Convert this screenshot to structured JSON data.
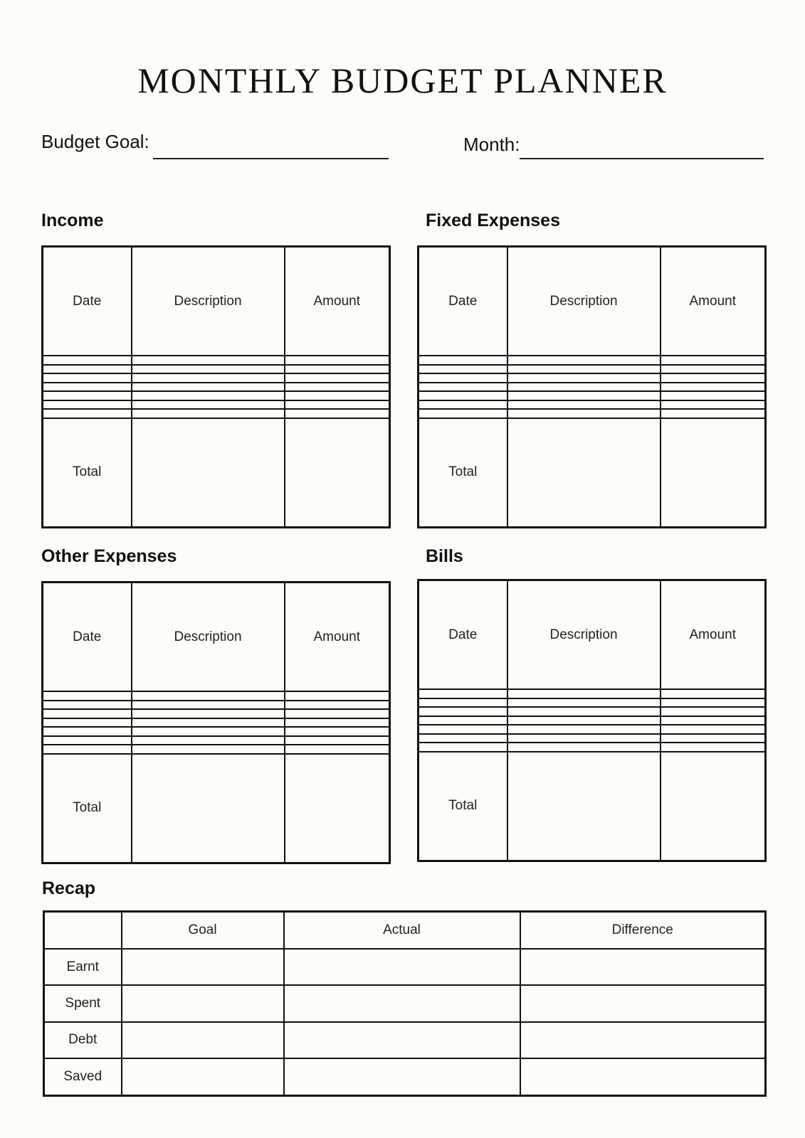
{
  "title": "MONTHLY BUDGET PLANNER",
  "budget_goal_label": "Budget Goal:",
  "month_label": "Month:",
  "sections": {
    "income": {
      "heading": "Income",
      "columns": [
        "Date",
        "Description",
        "Amount"
      ],
      "total_label": "Total"
    },
    "fixed": {
      "heading": "Fixed Expenses",
      "columns": [
        "Date",
        "Description",
        "Amount"
      ],
      "total_label": "Total"
    },
    "other": {
      "heading": "Other Expenses",
      "columns": [
        "Date",
        "Description",
        "Amount"
      ],
      "total_label": "Total"
    },
    "bills": {
      "heading": "Bills",
      "columns": [
        "Date",
        "Description",
        "Amount"
      ],
      "total_label": "Total"
    }
  },
  "recap": {
    "heading": "Recap",
    "columns": [
      "",
      "Goal",
      "Actual",
      "Difference"
    ],
    "rows": [
      "Earnt",
      "Spent",
      "Debt",
      "Saved"
    ]
  }
}
